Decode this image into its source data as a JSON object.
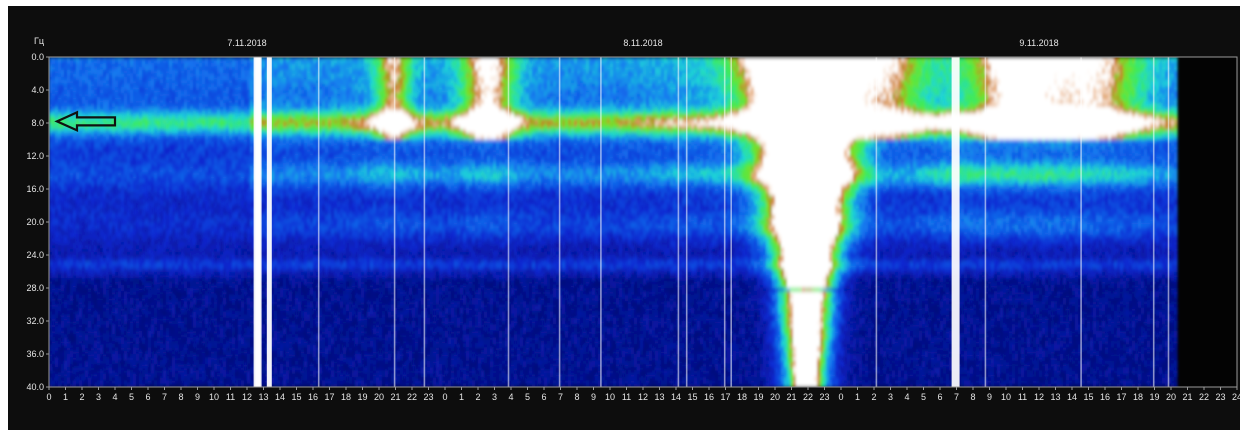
{
  "chart_data": {
    "type": "heatmap",
    "title": "",
    "ylabel": "Гц",
    "xlabel": "",
    "y_ticks": [
      "0.0",
      "4.0",
      "8.0",
      "12.0",
      "16.0",
      "20.0",
      "24.0",
      "28.0",
      "32.0",
      "36.0",
      "40.0"
    ],
    "ylim": [
      40,
      0
    ],
    "x_ticks": [
      "0",
      "1",
      "2",
      "3",
      "4",
      "5",
      "6",
      "7",
      "8",
      "9",
      "10",
      "11",
      "12",
      "13",
      "14",
      "15",
      "16",
      "17",
      "18",
      "19",
      "20",
      "21",
      "22",
      "23",
      "0",
      "1",
      "2",
      "3",
      "4",
      "5",
      "6",
      "7",
      "8",
      "9",
      "10",
      "11",
      "12",
      "13",
      "14",
      "15",
      "16",
      "17",
      "18",
      "19",
      "20",
      "21",
      "22",
      "23",
      "0",
      "1",
      "2",
      "3",
      "4",
      "5",
      "6",
      "7",
      "8",
      "9",
      "10",
      "11",
      "12",
      "13",
      "14",
      "15",
      "16",
      "17",
      "18",
      "19",
      "20",
      "21",
      "22",
      "23",
      "24"
    ],
    "dates": [
      {
        "label": "7.11.2018",
        "hour": 12
      },
      {
        "label": "8.11.2018",
        "hour": 36
      },
      {
        "label": "9.11.2018",
        "hour": 60
      }
    ],
    "data_end_hour": 68.3,
    "colors": {
      "background": "#0d0d0d",
      "low": "#0a1aa8",
      "mid": "#1fd8d0",
      "high": "#3df23d",
      "peak": "#c87020",
      "saturated": "#ffffff"
    },
    "bands_hz": [
      7.8,
      14.1,
      20.3,
      25.0
    ],
    "arrow": {
      "points_to_hz": 7.8
    }
  }
}
